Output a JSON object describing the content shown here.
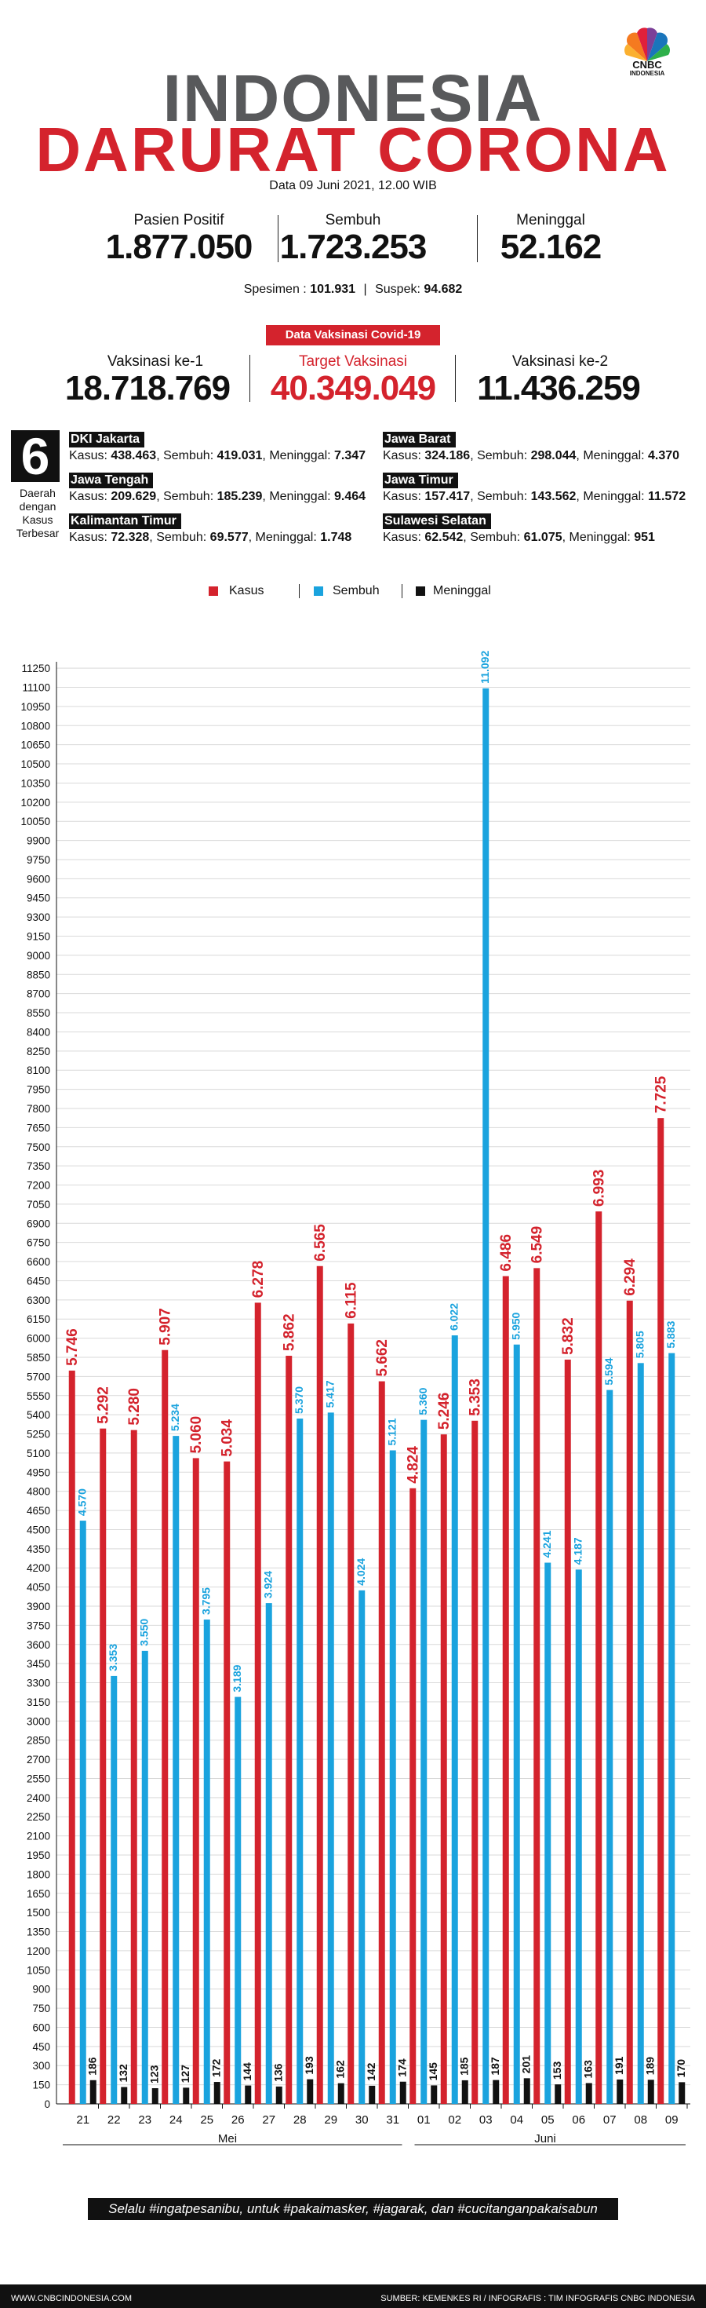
{
  "header": {
    "logo_text": "CNBC",
    "logo_sub": "INDONESIA",
    "title_line1": "INDONESIA",
    "title_line2": "DARURAT CORONA",
    "date": "Data 09 Juni 2021, 12.00 WIB"
  },
  "stats": [
    {
      "label": "Pasien Positif",
      "value": "1.877.050"
    },
    {
      "label": "Sembuh",
      "value": "1.723.253"
    },
    {
      "label": "Meninggal",
      "value": "52.162"
    }
  ],
  "specimen": {
    "spesimen_label": "Spesimen :",
    "spesimen_value": "101.931",
    "suspek_label": "Suspek:",
    "suspek_value": "94.682"
  },
  "vaccination": {
    "badge": "Data Vaksinasi Covid-19",
    "items": [
      {
        "label": "Vaksinasi ke-1",
        "value": "18.718.769"
      },
      {
        "label": "Target Vaksinasi",
        "value": "40.349.049"
      },
      {
        "label": "Vaksinasi ke-2",
        "value": "11.436.259"
      }
    ]
  },
  "regions_block": {
    "number": "6",
    "caption": "Daerah dengan Kasus Terbesar",
    "regions": [
      {
        "name": "DKI Jakarta",
        "kasus": "438.463",
        "sembuh": "419.031",
        "meninggal": "7.347"
      },
      {
        "name": "Jawa Barat",
        "kasus": "324.186",
        "sembuh": "298.044",
        "meninggal": "4.370"
      },
      {
        "name": "Jawa Tengah",
        "kasus": "209.629",
        "sembuh": "185.239",
        "meninggal": "9.464"
      },
      {
        "name": "Jawa Timur",
        "kasus": "157.417",
        "sembuh": "143.562",
        "meninggal": "11.572"
      },
      {
        "name": "Kalimantan Timur",
        "kasus": "72.328",
        "sembuh": "69.577",
        "meninggal": "1.748"
      },
      {
        "name": "Sulawesi Selatan",
        "kasus": "62.542",
        "sembuh": "61.075",
        "meninggal": "951"
      }
    ],
    "labels": {
      "kasus": "Kasus:",
      "sembuh": "Sembuh:",
      "meninggal": "Meninggal:"
    }
  },
  "legend": [
    {
      "name": "Kasus",
      "color": "#d4232d"
    },
    {
      "name": "Sembuh",
      "color": "#1aa3de"
    },
    {
      "name": "Meninggal",
      "color": "#111111"
    }
  ],
  "chart_data": {
    "type": "bar",
    "categories": [
      "21",
      "22",
      "23",
      "24",
      "25",
      "26",
      "27",
      "28",
      "29",
      "30",
      "31",
      "01",
      "02",
      "03",
      "04",
      "05",
      "06",
      "07",
      "08",
      "09"
    ],
    "months": [
      {
        "name": "Mei"
      },
      {
        "name": "Juni"
      }
    ],
    "series": [
      {
        "name": "Kasus",
        "color": "#d4232d",
        "values": [
          5746,
          5292,
          5280,
          5907,
          5060,
          5034,
          6278,
          5862,
          6565,
          6115,
          5662,
          4824,
          5246,
          5353,
          6486,
          6549,
          5832,
          6993,
          6294,
          7725
        ],
        "labels": [
          "5.746",
          "5.292",
          "5.280",
          "5.907",
          "5.060",
          "5.034",
          "6.278",
          "5.862",
          "6.565",
          "6.115",
          "5.662",
          "4.824",
          "5.246",
          "5.353",
          "6.486",
          "6.549",
          "5.832",
          "6.993",
          "6.294",
          "7.725"
        ]
      },
      {
        "name": "Sembuh",
        "color": "#1aa3de",
        "values": [
          4570,
          3353,
          3550,
          5234,
          3795,
          3189,
          3924,
          5370,
          5417,
          4024,
          5121,
          5360,
          6022,
          11092,
          5950,
          4241,
          4187,
          5594,
          5805,
          5883
        ],
        "labels": [
          "4.570",
          "3.353",
          "3.550",
          "5.234",
          "3.795",
          "3.189",
          "3.924",
          "5.370",
          "5.417",
          "4.024",
          "5.121",
          "5.360",
          "6.022",
          "11.092",
          "5.950",
          "4.241",
          "4.187",
          "5.594",
          "5.805",
          "5.883"
        ]
      },
      {
        "name": "Meninggal",
        "color": "#111111",
        "values": [
          186,
          132,
          123,
          127,
          172,
          144,
          136,
          193,
          162,
          142,
          174,
          145,
          185,
          187,
          201,
          153,
          163,
          191,
          189,
          170
        ],
        "labels": [
          "186",
          "132",
          "123",
          "127",
          "172",
          "144",
          "136",
          "193",
          "162",
          "142",
          "174",
          "145",
          "185",
          "187",
          "201",
          "153",
          "163",
          "191",
          "189",
          "170"
        ]
      }
    ],
    "ylim": [
      0,
      11300
    ],
    "ytick_step": 150,
    "grid": true,
    "legend_position": "top"
  },
  "footer": {
    "message": "Selalu #ingatpesanibu, untuk #pakaimasker, #jagarak, dan #cucitanganpakaisabun",
    "website": "WWW.CNBCINDONESIA.COM",
    "source": "SUMBER: KEMENKES RI / INFOGRAFIS : TIM INFOGRAFIS CNBC INDONESIA"
  }
}
